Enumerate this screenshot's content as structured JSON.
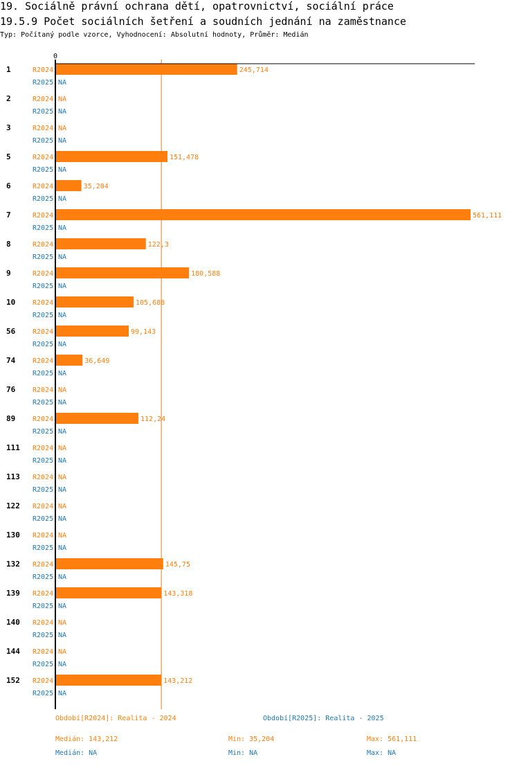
{
  "header": {
    "title_line1": "19. Sociálně právní ochrana dětí, opatrovnictví, sociální práce",
    "title_line2": "19.5.9 Počet sociálních šetření a soudních jednání na zaměstnance",
    "subtitle": "Typ: Počítaný podle vzorce, Vyhodnocení: Absolutní hodnoty, Průměr: Medián"
  },
  "chart_data": {
    "type": "bar",
    "orientation": "horizontal",
    "axis_zero_label": "0",
    "xlim": [
      0,
      561.111
    ],
    "median_line": 143.212,
    "na_label": "NA",
    "series": [
      {
        "name": "R2024",
        "color": "#ff7f0e"
      },
      {
        "name": "R2025",
        "color": "#1f77b4"
      }
    ],
    "categories": [
      "1",
      "2",
      "3",
      "5",
      "6",
      "7",
      "8",
      "9",
      "10",
      "56",
      "74",
      "76",
      "89",
      "111",
      "113",
      "122",
      "130",
      "132",
      "139",
      "140",
      "144",
      "152"
    ],
    "values_R2024": [
      245.714,
      null,
      null,
      151.478,
      35.204,
      561.111,
      122.3,
      180.588,
      105.688,
      99.143,
      36.649,
      null,
      112.24,
      null,
      null,
      null,
      null,
      145.75,
      143.318,
      null,
      null,
      143.212
    ],
    "labels_R2024": [
      "245,714",
      "NA",
      "NA",
      "151,478",
      "35,204",
      "561,111",
      "122,3",
      "180,588",
      "105,688",
      "99,143",
      "36,649",
      "NA",
      "112,24",
      "NA",
      "NA",
      "NA",
      "NA",
      "145,75",
      "143,318",
      "NA",
      "NA",
      "143,212"
    ],
    "values_R2025": [
      null,
      null,
      null,
      null,
      null,
      null,
      null,
      null,
      null,
      null,
      null,
      null,
      null,
      null,
      null,
      null,
      null,
      null,
      null,
      null,
      null,
      null
    ]
  },
  "legend": {
    "period_2024": "Období[R2024]: Realita - 2024",
    "period_2025": "Období[R2025]: Realita - 2025"
  },
  "stats": {
    "r2024": {
      "median": "Medián: 143,212",
      "min": "Min: 35,204",
      "max": "Max: 561,111"
    },
    "r2025": {
      "median": "Medián: NA",
      "min": "Min: NA",
      "max": "Max: NA"
    }
  },
  "colors": {
    "r2024": "#ff7f0e",
    "r2025": "#1f77b4",
    "median_line": "#e08020"
  }
}
